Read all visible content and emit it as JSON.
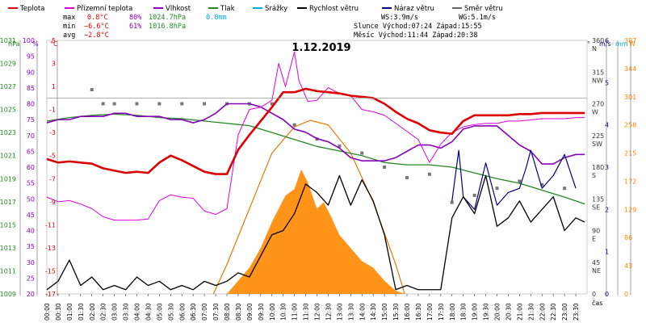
{
  "chart_data": {
    "type": "line",
    "title": "1.12.2019",
    "legend": [
      {
        "name": "Teplota",
        "color": "#dd0000"
      },
      {
        "name": "Přízemní teplota",
        "color": "#dd00dd"
      },
      {
        "name": "Vlhkost",
        "color": "#8800bb"
      },
      {
        "name": "Tlak",
        "color": "#228822"
      },
      {
        "name": "Srážky",
        "color": "#00aadd"
      },
      {
        "name": "Rychlost větru",
        "color": "#000000"
      },
      {
        "name": "Náraz větru",
        "color": "#000088"
      },
      {
        "name": "Směr větru",
        "color": "#666666"
      }
    ],
    "stats": {
      "max_label": "max",
      "max_temp": "0.8°C",
      "max_hum": "80%",
      "max_press": "1024.7hPa",
      "max_rain": "0.0mm",
      "min_label": "min",
      "min_temp": "−6.6°C",
      "min_hum": "61%",
      "min_press": "1016.8hPa",
      "avg_label": "avg",
      "avg_temp": "−2.8°C"
    },
    "wind_info": {
      "ws": "WS:3.9m/s",
      "wg": "WG:5.1m/s",
      "sun": "Slunce Východ:07:24 Západ:15:55",
      "moon": "Měsíc Východ:11:44 Západ:20:38"
    },
    "axes": {
      "hpa": {
        "unit": "hPa",
        "color": "#228822",
        "ticks": [
          "1031",
          "1029",
          "1027",
          "1025",
          "1023",
          "1021",
          "1019",
          "1017",
          "1015",
          "1013",
          "1011",
          "1009"
        ],
        "range": [
          1009,
          1031
        ]
      },
      "pct": {
        "unit": "%",
        "color": "#8800bb",
        "ticks": [
          "100",
          "95",
          "90",
          "85",
          "80",
          "75",
          "70",
          "65",
          "60",
          "55",
          "50",
          "45",
          "40",
          "35",
          "30",
          "25",
          "20"
        ],
        "range": [
          20,
          100
        ]
      },
      "temp": {
        "unit": "°C",
        "color": "#dd0000",
        "ticks": [
          "5",
          "3",
          "1",
          "-1",
          "-3",
          "-5",
          "-7",
          "-9",
          "-11",
          "-13",
          "-15",
          "-17"
        ],
        "range": [
          -17,
          5
        ]
      },
      "dir": {
        "unit": "°",
        "ticks": [
          "360\nN",
          "315\nNW",
          "270\nW",
          "225\nSW",
          "180\nS",
          "135\nSE",
          "90\nE",
          "45\nNE",
          "0"
        ]
      },
      "ms": {
        "unit": "m/s",
        "color": "#000088",
        "ticks": [
          "6",
          "5",
          "4",
          "3",
          "2",
          "1",
          "0"
        ],
        "range": [
          0,
          6
        ]
      },
      "mm": {
        "unit": "mm",
        "color": "#00aadd",
        "ticks": [
          "1",
          "0"
        ]
      },
      "w": {
        "unit": "W",
        "color": "#ff8800",
        "ticks": [
          "387",
          "344",
          "301",
          "258",
          "215",
          "172",
          "129",
          "86",
          "43",
          "0"
        ],
        "range": [
          0,
          387
        ]
      },
      "x_label": "čas",
      "x_ticks": [
        "00:00",
        "00:30",
        "01:00",
        "01:30",
        "02:00",
        "02:30",
        "03:00",
        "03:30",
        "04:00",
        "04:30",
        "05:00",
        "05:30",
        "06:00",
        "06:30",
        "07:00",
        "07:30",
        "08:00",
        "08:30",
        "09:00",
        "09:30",
        "10:00",
        "10:30",
        "11:00",
        "11:30",
        "12:00",
        "12:30",
        "13:00",
        "13:30",
        "14:00",
        "14:30",
        "15:00",
        "15:30",
        "16:00",
        "16:30",
        "17:00",
        "17:30",
        "18:00",
        "18:30",
        "19:00",
        "19:30",
        "20:00",
        "20:30",
        "21:00",
        "21:30",
        "22:00",
        "22:30",
        "23:00",
        "23:30"
      ]
    },
    "series": {
      "temperature_c": [
        [
          0,
          -5.3
        ],
        [
          0.5,
          -5.6
        ],
        [
          1,
          -5.5
        ],
        [
          1.5,
          -5.6
        ],
        [
          2,
          -5.7
        ],
        [
          2.5,
          -6.1
        ],
        [
          3,
          -6.3
        ],
        [
          3.5,
          -6.5
        ],
        [
          4,
          -6.4
        ],
        [
          4.5,
          -6.5
        ],
        [
          5,
          -5.6
        ],
        [
          5.5,
          -5.0
        ],
        [
          6,
          -5.4
        ],
        [
          6.5,
          -5.9
        ],
        [
          7,
          -6.4
        ],
        [
          7.5,
          -6.6
        ],
        [
          8,
          -6.6
        ],
        [
          8.5,
          -4.5
        ],
        [
          9,
          -3.2
        ],
        [
          9.5,
          -2.0
        ],
        [
          10,
          -0.8
        ],
        [
          10.5,
          0.5
        ],
        [
          11,
          0.5
        ],
        [
          11.5,
          0.8
        ],
        [
          12,
          0.6
        ],
        [
          12.5,
          0.5
        ],
        [
          13,
          0.4
        ],
        [
          13.5,
          0.2
        ],
        [
          14,
          0.1
        ],
        [
          14.5,
          0
        ],
        [
          15,
          -0.5
        ],
        [
          15.5,
          -1.2
        ],
        [
          16,
          -1.8
        ],
        [
          16.5,
          -2.2
        ],
        [
          17,
          -2.8
        ],
        [
          17.5,
          -3.0
        ],
        [
          18,
          -3.1
        ],
        [
          18.5,
          -2.0
        ],
        [
          19,
          -1.5
        ],
        [
          19.5,
          -1.5
        ],
        [
          20,
          -1.5
        ],
        [
          20.5,
          -1.5
        ],
        [
          21,
          -1.4
        ],
        [
          21.5,
          -1.4
        ],
        [
          22,
          -1.3
        ],
        [
          22.5,
          -1.3
        ],
        [
          23,
          -1.3
        ],
        [
          23.5,
          -1.3
        ],
        [
          23.9,
          -1.3
        ]
      ],
      "ground_temp_c": [
        [
          0,
          -8.6
        ],
        [
          0.5,
          -9
        ],
        [
          1,
          -8.9
        ],
        [
          1.5,
          -9.2
        ],
        [
          2,
          -9.6
        ],
        [
          2.5,
          -10.3
        ],
        [
          3,
          -10.6
        ],
        [
          3.5,
          -10.6
        ],
        [
          4,
          -10.6
        ],
        [
          4.5,
          -10.5
        ],
        [
          5,
          -8.9
        ],
        [
          5.5,
          -8.4
        ],
        [
          6,
          -8.6
        ],
        [
          6.5,
          -8.7
        ],
        [
          7,
          -9.8
        ],
        [
          7.5,
          -10.1
        ],
        [
          8,
          -9.6
        ],
        [
          8.5,
          -3.2
        ],
        [
          9,
          -1.0
        ],
        [
          9.5,
          -0.8
        ],
        [
          10,
          -0.2
        ],
        [
          10.3,
          3.0
        ],
        [
          10.6,
          1.0
        ],
        [
          11,
          4.0
        ],
        [
          11.2,
          1.5
        ],
        [
          11.6,
          -0.3
        ],
        [
          12,
          -0.2
        ],
        [
          12.5,
          0.9
        ],
        [
          13,
          0.4
        ],
        [
          13.5,
          0.2
        ],
        [
          14,
          -1.0
        ],
        [
          14.5,
          -1.2
        ],
        [
          15,
          -1.5
        ],
        [
          15.5,
          -2.2
        ],
        [
          16,
          -2.9
        ],
        [
          16.5,
          -3.6
        ],
        [
          17,
          -5.6
        ],
        [
          17.5,
          -4.0
        ],
        [
          18,
          -3.0
        ],
        [
          18.5,
          -2.5
        ],
        [
          19,
          -2.3
        ],
        [
          19.5,
          -2.2
        ],
        [
          20,
          -2.2
        ],
        [
          20.5,
          -2.0
        ],
        [
          21,
          -2.0
        ],
        [
          21.5,
          -1.9
        ],
        [
          22,
          -1.8
        ],
        [
          22.5,
          -1.8
        ],
        [
          23,
          -1.8
        ],
        [
          23.5,
          -1.7
        ],
        [
          23.9,
          -1.7
        ]
      ],
      "humidity_pct": [
        [
          0,
          74
        ],
        [
          0.5,
          75
        ],
        [
          1,
          75
        ],
        [
          1.5,
          76
        ],
        [
          2,
          76
        ],
        [
          2.5,
          76
        ],
        [
          3,
          77
        ],
        [
          3.5,
          77
        ],
        [
          4,
          76
        ],
        [
          4.5,
          76
        ],
        [
          5,
          76
        ],
        [
          5.5,
          75
        ],
        [
          6,
          75
        ],
        [
          6.5,
          74
        ],
        [
          7,
          75
        ],
        [
          7.5,
          77
        ],
        [
          8,
          80
        ],
        [
          8.5,
          80
        ],
        [
          9,
          80
        ],
        [
          9.5,
          79
        ],
        [
          10,
          77
        ],
        [
          10.5,
          75
        ],
        [
          11,
          72
        ],
        [
          11.5,
          71
        ],
        [
          12,
          69
        ],
        [
          12.5,
          68
        ],
        [
          13,
          66
        ],
        [
          13.5,
          63
        ],
        [
          14,
          62
        ],
        [
          14.5,
          62
        ],
        [
          15,
          62
        ],
        [
          15.5,
          63
        ],
        [
          16,
          65
        ],
        [
          16.5,
          67
        ],
        [
          17,
          67
        ],
        [
          17.5,
          66
        ],
        [
          18,
          68
        ],
        [
          18.5,
          72
        ],
        [
          19,
          73
        ],
        [
          19.5,
          73
        ],
        [
          20,
          73
        ],
        [
          20.5,
          70
        ],
        [
          21,
          67
        ],
        [
          21.5,
          65
        ],
        [
          22,
          61
        ],
        [
          22.5,
          61
        ],
        [
          23,
          63
        ],
        [
          23.5,
          64
        ],
        [
          23.9,
          64
        ]
      ],
      "pressure_hpa": [
        [
          0,
          1024.0
        ],
        [
          1,
          1024.3
        ],
        [
          2,
          1024.5
        ],
        [
          3,
          1024.6
        ],
        [
          4,
          1024.5
        ],
        [
          5,
          1024.3
        ],
        [
          6,
          1024.2
        ],
        [
          7,
          1024.0
        ],
        [
          8,
          1023.8
        ],
        [
          8.5,
          1023.7
        ],
        [
          9,
          1023.6
        ],
        [
          10,
          1023.0
        ],
        [
          11,
          1022.4
        ],
        [
          12,
          1021.8
        ],
        [
          13,
          1021.4
        ],
        [
          14,
          1021.0
        ],
        [
          15,
          1020.4
        ],
        [
          16,
          1020.2
        ],
        [
          17,
          1020.2
        ],
        [
          18,
          1020.0
        ],
        [
          19,
          1019.5
        ],
        [
          20,
          1019.0
        ],
        [
          21,
          1018.6
        ],
        [
          22,
          1018.0
        ],
        [
          23,
          1017.4
        ],
        [
          23.9,
          1016.8
        ]
      ],
      "wind_speed_ms": [
        [
          0,
          0.1
        ],
        [
          0.5,
          0.3
        ],
        [
          1,
          0.8
        ],
        [
          1.5,
          0.2
        ],
        [
          2,
          0.4
        ],
        [
          2.5,
          0.1
        ],
        [
          3,
          0.2
        ],
        [
          3.5,
          0.1
        ],
        [
          4,
          0.4
        ],
        [
          4.5,
          0.2
        ],
        [
          5,
          0.3
        ],
        [
          5.5,
          0.1
        ],
        [
          6,
          0.2
        ],
        [
          6.5,
          0.1
        ],
        [
          7,
          0.3
        ],
        [
          7.5,
          0.2
        ],
        [
          8,
          0.3
        ],
        [
          8.5,
          0.5
        ],
        [
          9,
          0.4
        ],
        [
          9.5,
          0.9
        ],
        [
          10,
          1.4
        ],
        [
          10.5,
          1.5
        ],
        [
          11,
          1.9
        ],
        [
          11.5,
          2.6
        ],
        [
          12,
          2.4
        ],
        [
          12.5,
          2.1
        ],
        [
          13,
          2.8
        ],
        [
          13.5,
          2.1
        ],
        [
          14,
          2.7
        ],
        [
          14.5,
          2.2
        ],
        [
          15,
          1.4
        ],
        [
          15.5,
          0.1
        ],
        [
          16,
          0.2
        ],
        [
          16.5,
          0.1
        ],
        [
          17,
          0.1
        ],
        [
          17.5,
          0.1
        ],
        [
          18,
          1.8
        ],
        [
          18.5,
          2.3
        ],
        [
          19,
          1.9
        ],
        [
          19.5,
          2.8
        ],
        [
          20,
          1.6
        ],
        [
          20.5,
          1.8
        ],
        [
          21,
          2.2
        ],
        [
          21.5,
          1.7
        ],
        [
          22,
          2.0
        ],
        [
          22.5,
          2.3
        ],
        [
          23,
          1.5
        ],
        [
          23.5,
          1.8
        ],
        [
          23.9,
          1.7
        ]
      ],
      "wind_gust_ms": [
        [
          18,
          2.2
        ],
        [
          18.3,
          3.4
        ],
        [
          18.5,
          2.3
        ],
        [
          19,
          2.0
        ],
        [
          19.5,
          3.1
        ],
        [
          20,
          2.1
        ],
        [
          20.5,
          2.4
        ],
        [
          21,
          2.5
        ],
        [
          21.3,
          3.0
        ],
        [
          21.5,
          3.4
        ],
        [
          22,
          2.5
        ],
        [
          22.5,
          2.8
        ],
        [
          23,
          3.3
        ],
        [
          23.5,
          2.5
        ]
      ],
      "solar_w": [
        [
          7.4,
          0
        ],
        [
          8,
          0
        ],
        [
          8.5,
          20
        ],
        [
          9,
          40
        ],
        [
          9.5,
          70
        ],
        [
          10,
          110
        ],
        [
          10.3,
          130
        ],
        [
          10.6,
          150
        ],
        [
          11,
          160
        ],
        [
          11.3,
          190
        ],
        [
          11.6,
          170
        ],
        [
          12,
          130
        ],
        [
          12.3,
          140
        ],
        [
          12.6,
          120
        ],
        [
          13,
          90
        ],
        [
          13.5,
          70
        ],
        [
          14,
          50
        ],
        [
          14.5,
          40
        ],
        [
          15,
          20
        ],
        [
          15.5,
          5
        ],
        [
          15.9,
          0
        ]
      ],
      "solar_theoretical_w": [
        [
          7.4,
          0
        ],
        [
          8,
          45
        ],
        [
          9,
          130
        ],
        [
          10,
          215
        ],
        [
          11,
          255
        ],
        [
          11.7,
          265
        ],
        [
          12.5,
          258
        ],
        [
          13.5,
          215
        ],
        [
          14.5,
          140
        ],
        [
          15.5,
          45
        ],
        [
          15.9,
          0
        ]
      ],
      "wind_dir_deg": [
        [
          2,
          290
        ],
        [
          2.5,
          270
        ],
        [
          3,
          270
        ],
        [
          4,
          270
        ],
        [
          5,
          270
        ],
        [
          6,
          270
        ],
        [
          7,
          270
        ],
        [
          8,
          270
        ],
        [
          9,
          270
        ],
        [
          10,
          270
        ],
        [
          11,
          240
        ],
        [
          12,
          220
        ],
        [
          13,
          210
        ],
        [
          14,
          200
        ],
        [
          15,
          180
        ],
        [
          16,
          165
        ],
        [
          17,
          170
        ],
        [
          18,
          130
        ],
        [
          19,
          140
        ],
        [
          20,
          150
        ],
        [
          21,
          160
        ],
        [
          22,
          155
        ],
        [
          23,
          150
        ]
      ]
    }
  }
}
